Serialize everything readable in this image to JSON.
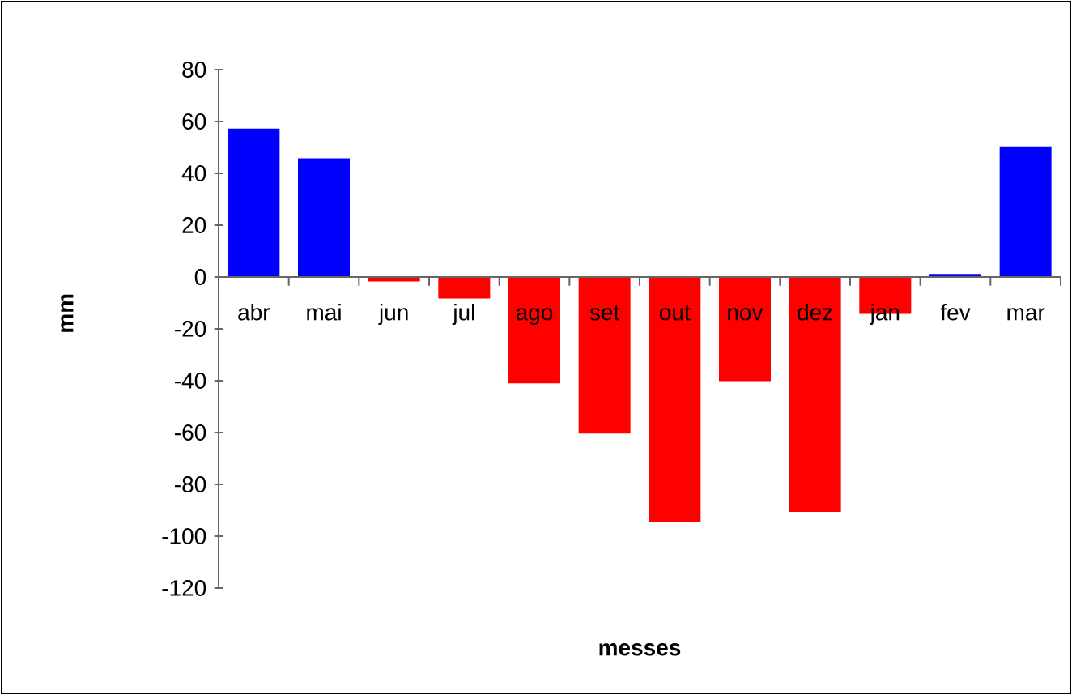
{
  "chart_data": {
    "type": "bar",
    "xlabel": "messes",
    "ylabel": "mm",
    "categories": [
      "abr",
      "mai",
      "jun",
      "jul",
      "ago",
      "set",
      "out",
      "nov",
      "dez",
      "jan",
      "fev",
      "mar"
    ],
    "values": [
      57.3,
      45.8,
      -1.7,
      -8.3,
      -41,
      -60.4,
      -94.6,
      -40.2,
      -90.6,
      -14.2,
      1.2,
      50.4
    ],
    "colors": [
      "#0000ff",
      "#0000ff",
      "#ff0000",
      "#ff0000",
      "#ff0000",
      "#ff0000",
      "#ff0000",
      "#ff0000",
      "#ff0000",
      "#ff0000",
      "#0000ff",
      "#0000ff"
    ],
    "ylim": [
      -120,
      80
    ],
    "yticks": [
      -120,
      -100,
      -80,
      -60,
      -40,
      -20,
      0,
      20,
      40,
      60,
      80
    ],
    "grid": false
  }
}
